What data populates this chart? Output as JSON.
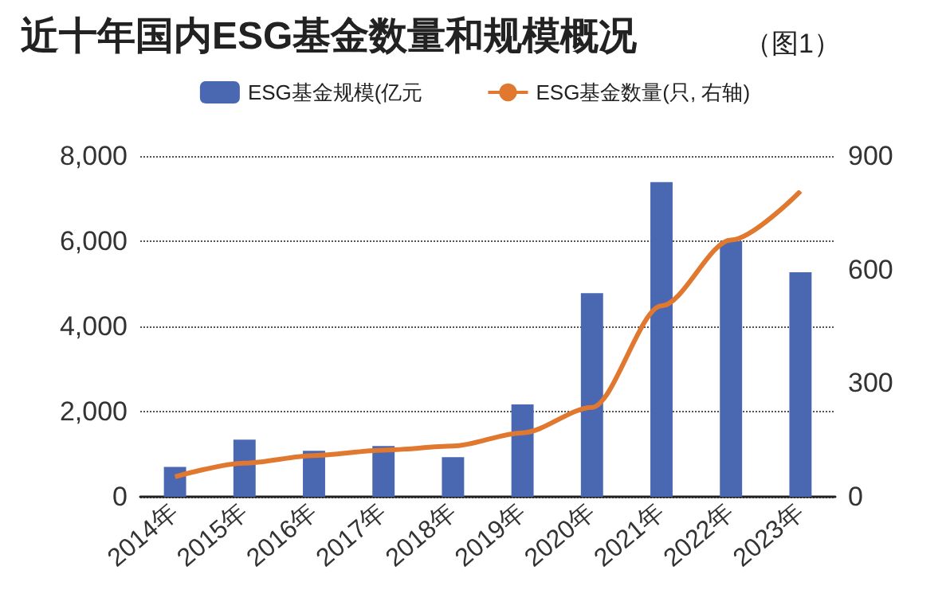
{
  "chart_data": {
    "type": "bar",
    "title": "近十年国内ESG基金数量和规模概况",
    "subtitle": "（图1）",
    "categories": [
      "2014年",
      "2015年",
      "2016年",
      "2017年",
      "2018年",
      "2019年",
      "2020年",
      "2021年",
      "2022年",
      "2023年"
    ],
    "series": [
      {
        "name": "ESG基金规模(亿元",
        "color": "#4a67b2",
        "values": [
          700,
          1340,
          1080,
          1190,
          930,
          2170,
          4780,
          7390,
          6000,
          5270
        ]
      },
      {
        "name": "ESG基金数量(只, 右轴)",
        "type": "line",
        "axis": "y2",
        "color": "#e0782f",
        "values": [
          53,
          89,
          109,
          123,
          134,
          169,
          236,
          504,
          678,
          807
        ]
      }
    ],
    "ylim": [
      0,
      8000
    ],
    "yticks": [
      0,
      {
        "value": 2000,
        "label": "2,000"
      },
      {
        "value": 4000,
        "label": "4,000"
      },
      {
        "value": 6000,
        "label": "6,000"
      },
      {
        "value": 8000,
        "label": "8,000"
      }
    ],
    "y2lim": [
      0,
      900
    ],
    "y2ticks": [
      0,
      300,
      600,
      900
    ],
    "grid": "y",
    "legend": "top",
    "marker": "none",
    "line_style": "solid"
  }
}
